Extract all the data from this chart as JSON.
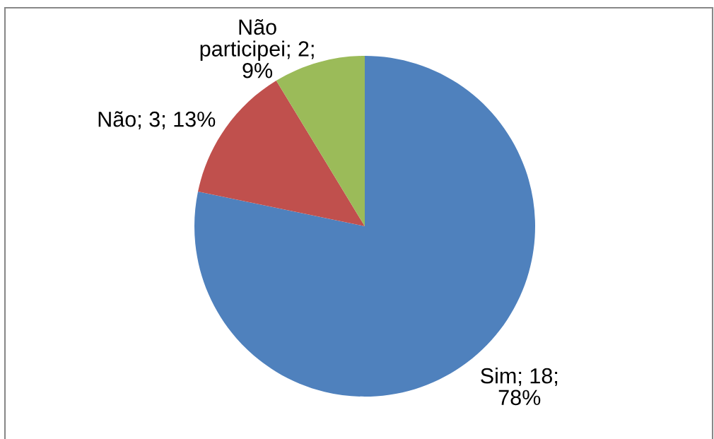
{
  "chart_data": {
    "type": "pie",
    "categories": [
      "Sim",
      "Não",
      "Não participei"
    ],
    "values": [
      18,
      3,
      2
    ],
    "colors": [
      "#4f81bd",
      "#c0504d",
      "#9bbb59"
    ],
    "value_labels": [
      "; 18; 78%",
      "; 3; 13%",
      "; 2; 9%"
    ],
    "legend": false
  }
}
